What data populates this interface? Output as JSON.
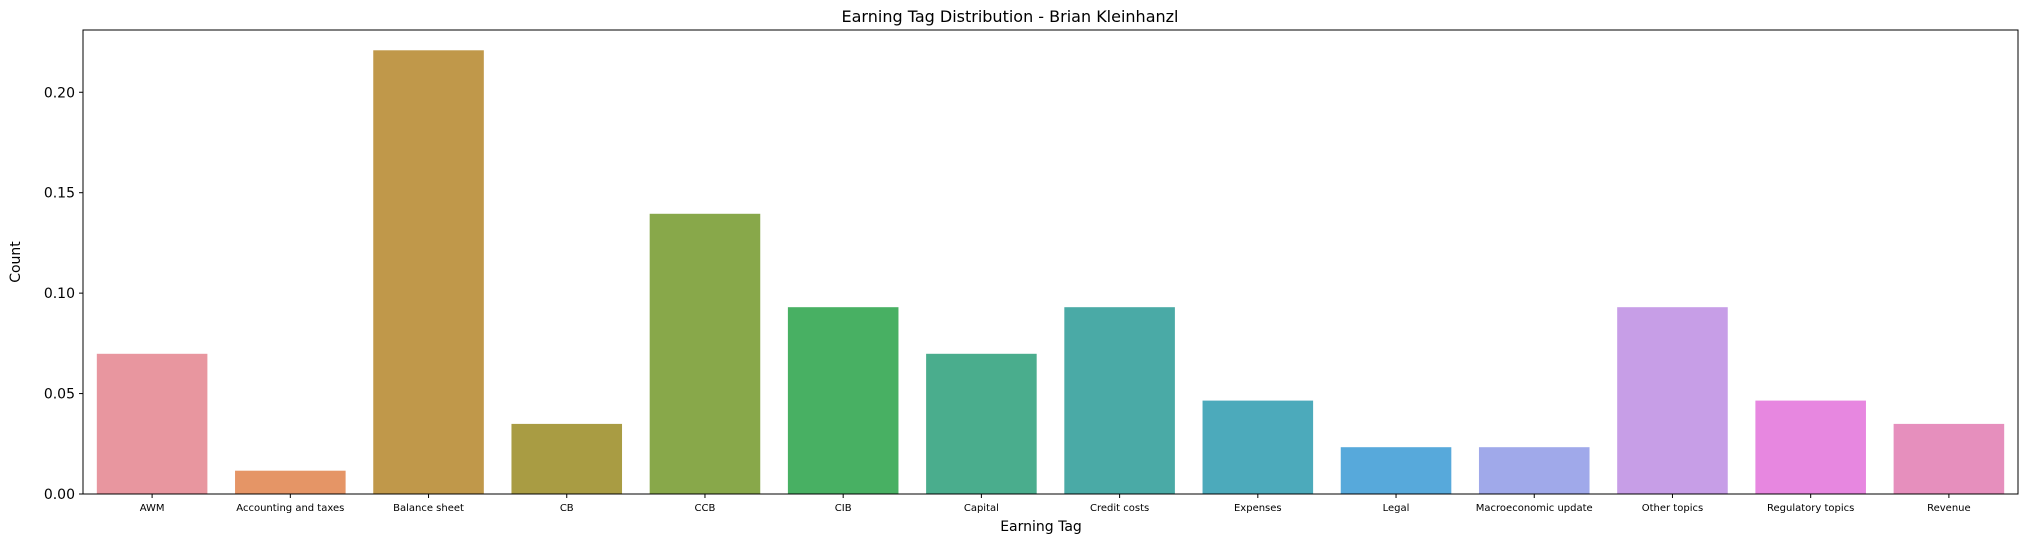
{
  "chart_data": {
    "type": "bar",
    "title": "Earning Tag Distribution - Brian Kleinhanzl",
    "xlabel": "Earning Tag",
    "ylabel": "Count",
    "ylim": [
      0,
      0.231
    ],
    "grid": false,
    "categories": [
      "AWM",
      "Accounting and taxes",
      "Balance sheet",
      "CB",
      "CCB",
      "CIB",
      "Capital",
      "Credit costs",
      "Expenses",
      "Legal",
      "Macroeconomic update",
      "Other topics",
      "Regulatory topics",
      "Revenue"
    ],
    "values": [
      0.0698,
      0.0116,
      0.2209,
      0.0349,
      0.1395,
      0.093,
      0.0698,
      0.093,
      0.0465,
      0.0233,
      0.0233,
      0.093,
      0.0465,
      0.0349
    ],
    "yticks": [
      0.0,
      0.05,
      0.1,
      0.15,
      0.2
    ],
    "ytick_labels": [
      "0.00",
      "0.05",
      "0.10",
      "0.15",
      "0.20"
    ],
    "colors": [
      "#e8969f",
      "#e59566",
      "#c0984a",
      "#a99c43",
      "#88a84a",
      "#48b063",
      "#4aad8d",
      "#4aaaa6",
      "#4caabb",
      "#57a9db",
      "#a0a9ea",
      "#c79ee7",
      "#e787e0",
      "#e68fbd"
    ]
  }
}
